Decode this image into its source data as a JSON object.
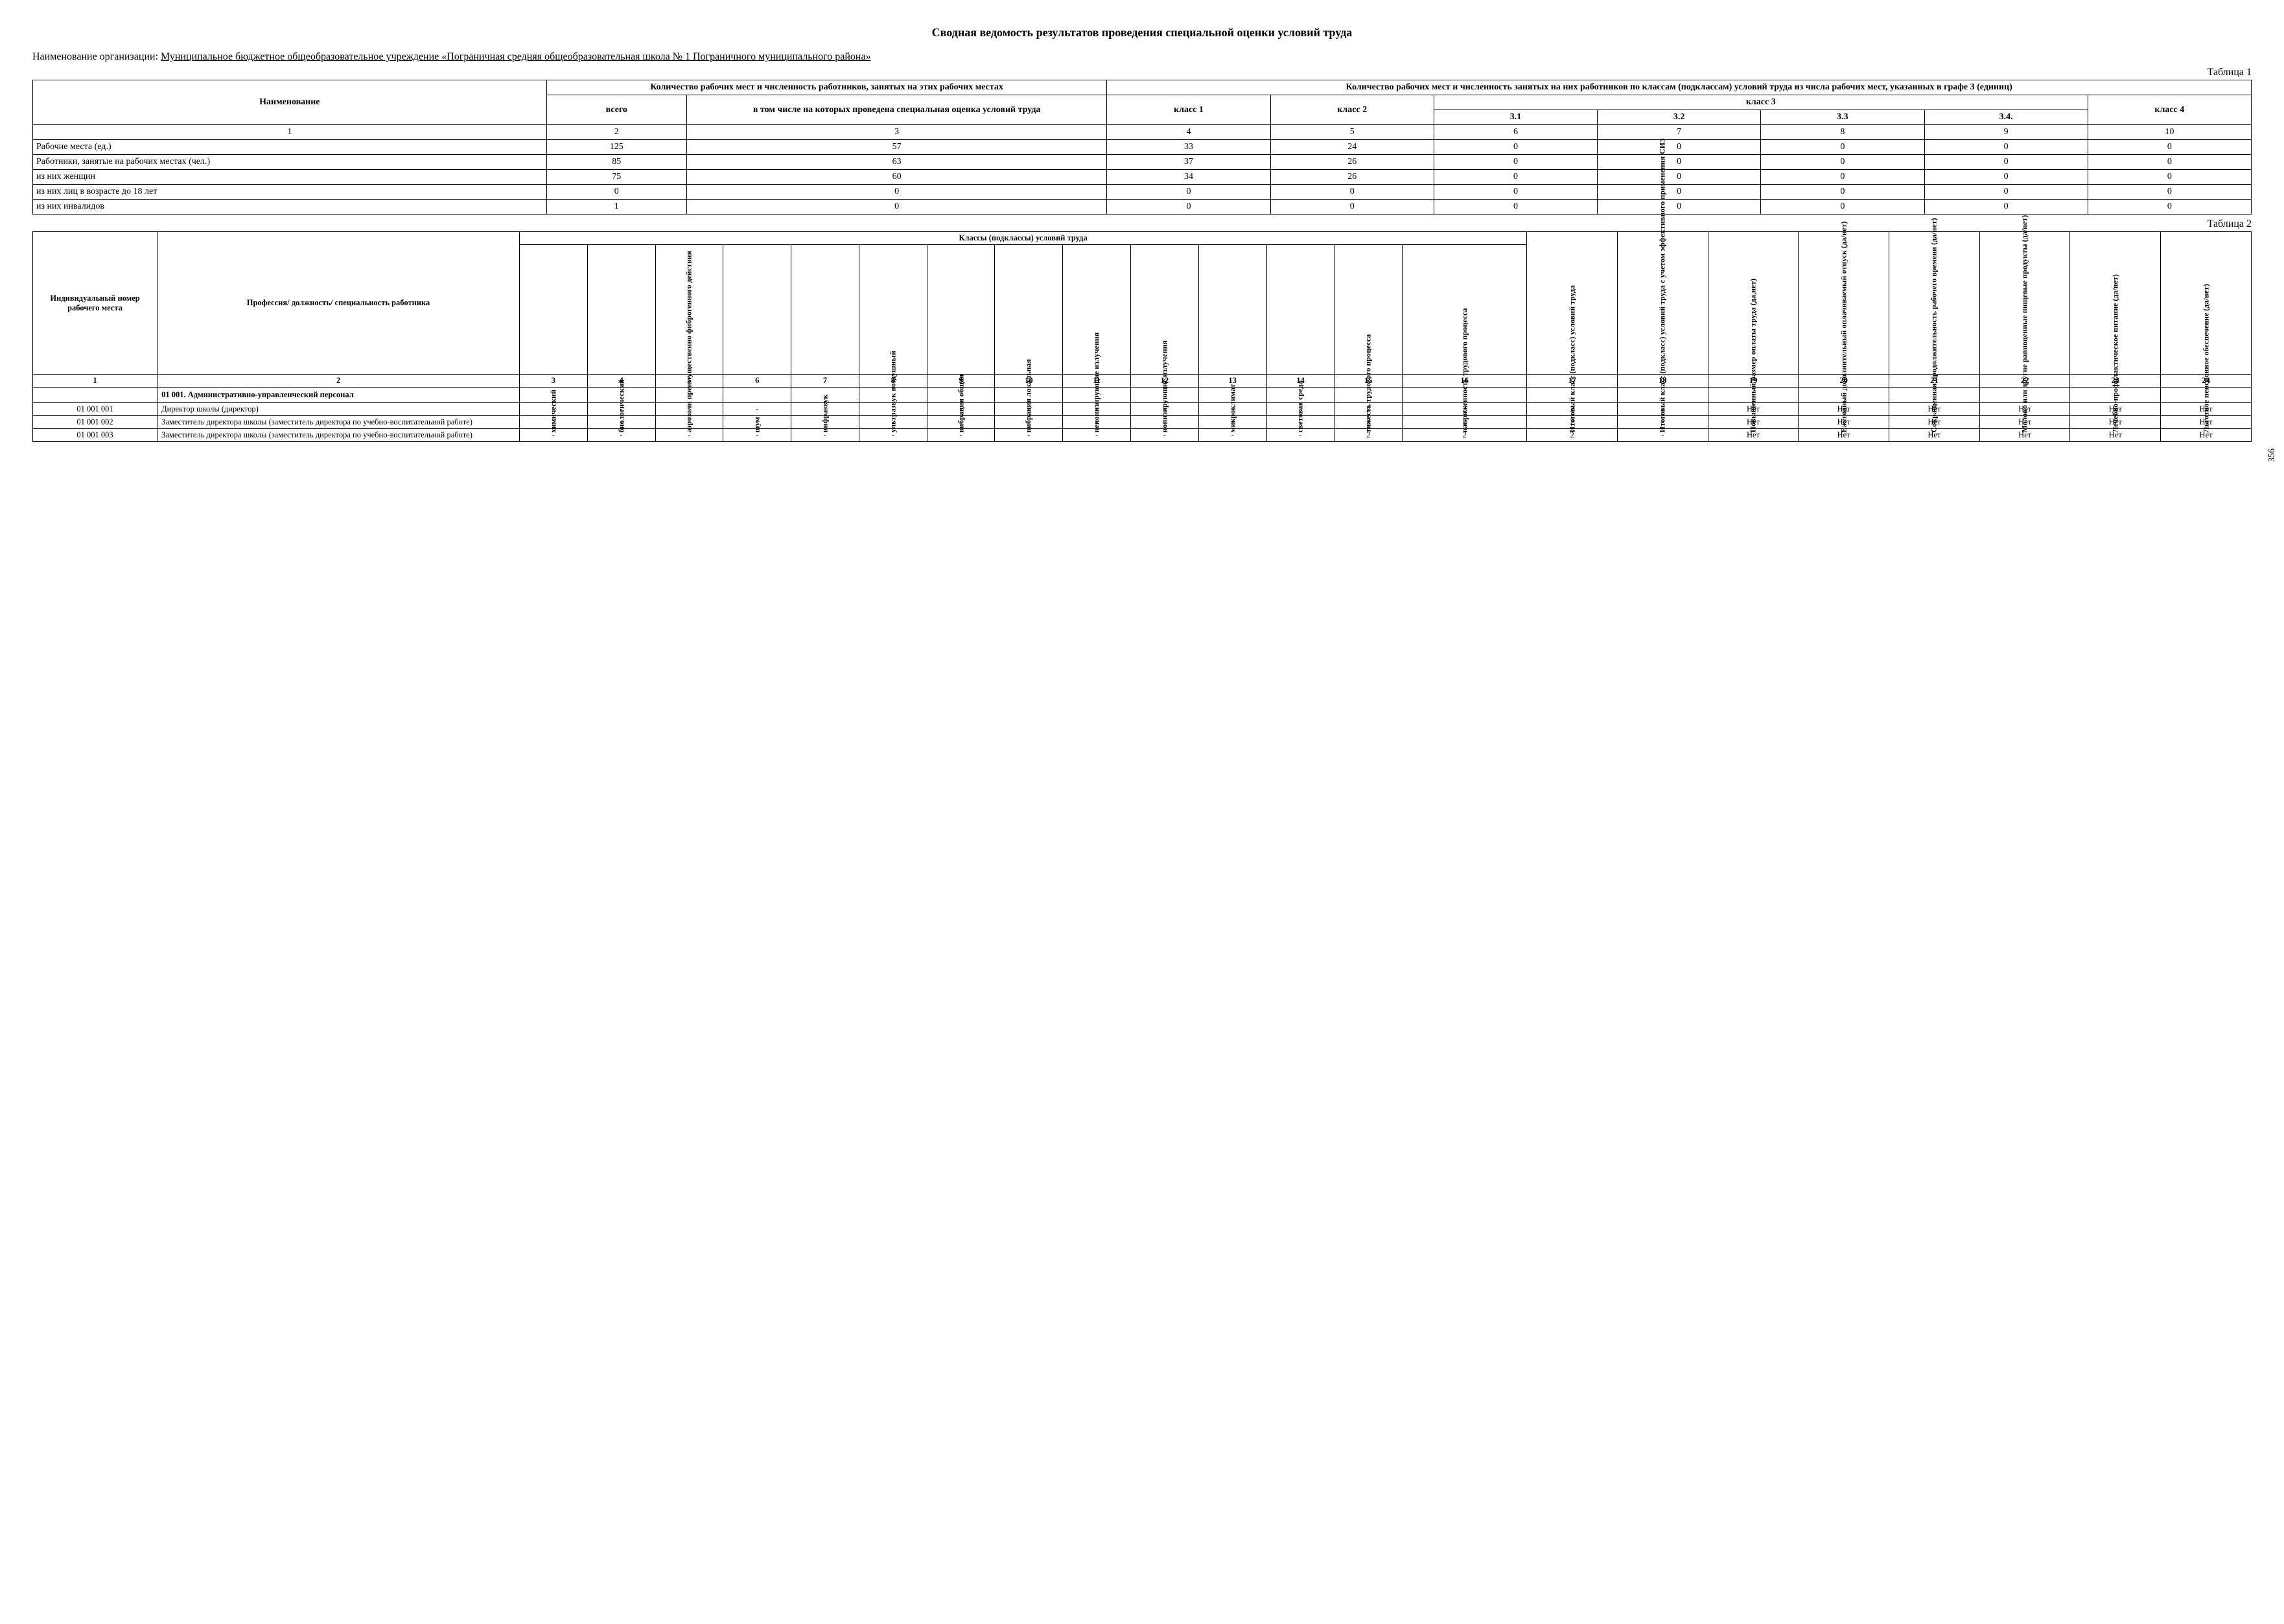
{
  "page_number": "356",
  "title": "Сводная ведомость результатов проведения специальной оценки условий труда",
  "org_label": "Наименование организации:",
  "org_name": "Муниципальное бюджетное общеобразовательное учреждение «Пограничная средняя общеобразовательная школа № 1 Пограничного муниципального района»",
  "table1_caption": "Таблица 1",
  "table1": {
    "h_name": "Наименование",
    "h_cnt": "Количество рабочих мест и численность работников, занятых на этих рабочих местах",
    "h_cnt_total": "всего",
    "h_cnt_sout": "в том числе на которых проведена специальная оценка условий труда",
    "h_by_class": "Количество рабочих мест и численность занятых на них работников по классам (подклассам) условий труда из числа рабочих мест, указанных в графе 3 (единиц)",
    "h_class1": "класс 1",
    "h_class2": "класс 2",
    "h_class3": "класс 3",
    "h_class4": "класс 4",
    "h_31": "3.1",
    "h_32": "3.2",
    "h_33": "3.3",
    "h_34": "3.4.",
    "num_row": [
      "1",
      "2",
      "3",
      "4",
      "5",
      "6",
      "7",
      "8",
      "9",
      "10"
    ],
    "rows": [
      {
        "label": "Рабочие места (ед.)",
        "v": [
          "125",
          "57",
          "33",
          "24",
          "0",
          "0",
          "0",
          "0",
          "0"
        ]
      },
      {
        "label": "Работники, занятые на рабочих местах (чел.)",
        "v": [
          "85",
          "63",
          "37",
          "26",
          "0",
          "0",
          "0",
          "0",
          "0"
        ]
      },
      {
        "label": "из них женщин",
        "v": [
          "75",
          "60",
          "34",
          "26",
          "0",
          "0",
          "0",
          "0",
          "0"
        ]
      },
      {
        "label": "из них лиц в возрасте до 18 лет",
        "v": [
          "0",
          "0",
          "0",
          "0",
          "0",
          "0",
          "0",
          "0",
          "0"
        ]
      },
      {
        "label": "из них инвалидов",
        "v": [
          "1",
          "0",
          "0",
          "0",
          "0",
          "0",
          "0",
          "0",
          "0"
        ]
      }
    ]
  },
  "table2_caption": "Таблица 2",
  "table2": {
    "h_id": "Индивидуальный номер рабочего места",
    "h_prof": "Профессия/ должность/ специальность работника",
    "h_classes": "Классы (подклассы) условий труда",
    "vcols": [
      "химический",
      "биологический",
      "аэрозоли преимущественно фиброгенного действия",
      "шум",
      "инфразвук",
      "ультразвук воздушный",
      "вибрация общая",
      "вибрация локальная",
      "неионизирующие излучения",
      "ионизирующие излучения",
      "микроклимат",
      "световая среда",
      "тяжесть трудового процесса",
      "напряженность трудового процесса",
      "Итоговый класс (подкласс) условий труда",
      "Итоговый класс (подкласс) условий труда с учетом эффективного применения СИЗ",
      "Повышенный размер оплаты труда (да,нет)",
      "Ежегодный дополнительный оплачиваемый отпуск (да/нет)",
      "Сокращенная продолжительность рабочего времени (да/нет)",
      "Молоко или другие равноценные пищевые продукты (да/нет)",
      "Лечебно-профилактическое питание (да/нет)",
      "Льготное пенсионное обеспечение (да/нет)"
    ],
    "num_row": [
      "1",
      "2",
      "3",
      "4",
      "5",
      "6",
      "7",
      "8",
      "9",
      "10",
      "11",
      "12",
      "13",
      "14",
      "15",
      "16",
      "17",
      "18",
      "19",
      "20",
      "21",
      "22",
      "23",
      "24"
    ],
    "group": "01 001. Административно-управленческий персонал",
    "rows": [
      {
        "id": "01 001 001",
        "prof": "Директор школы (директор)",
        "v": [
          "-",
          "-",
          "-",
          "-",
          "-",
          "-",
          "-",
          "-",
          "-",
          "-",
          "-",
          "-",
          "2",
          "2",
          "2",
          "-",
          "Нет",
          "Нет",
          "Нет",
          "Нет",
          "Нет",
          "Нет"
        ]
      },
      {
        "id": "01 001 002",
        "prof": "Заместитель директора школы (заместитель директора по учебно-воспитательной работе)",
        "v": [
          "-",
          "-",
          "-",
          "-",
          "-",
          "-",
          "-",
          "-",
          "-",
          "-",
          "-",
          "-",
          "2",
          "2",
          "2",
          "-",
          "Нет",
          "Нет",
          "Нет",
          "Нет",
          "Нет",
          "Нет"
        ]
      },
      {
        "id": "01 001 003",
        "prof": "Заместитель директора школы (заместитель директора по учебно-воспитательной работе)",
        "v": [
          "-",
          "-",
          "-",
          "-",
          "-",
          "-",
          "-",
          "-",
          "-",
          "-",
          "-",
          "-",
          "2",
          "2",
          "2",
          "-",
          "Нет",
          "Нет",
          "Нет",
          "Нет",
          "Нет",
          "Нет"
        ]
      }
    ]
  }
}
